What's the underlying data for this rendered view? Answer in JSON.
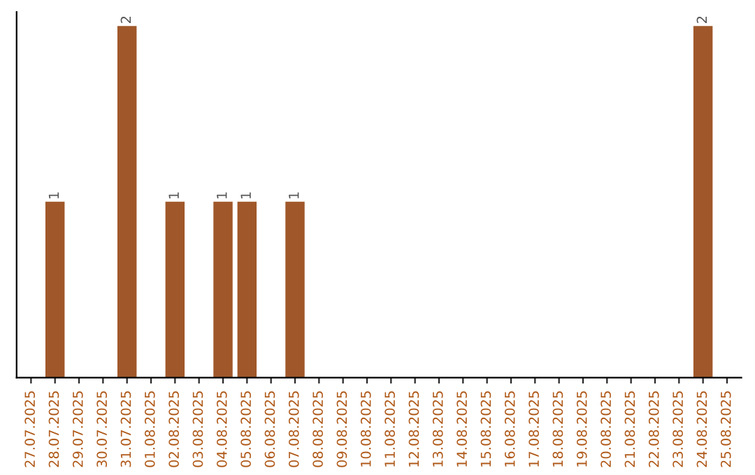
{
  "chart_data": {
    "type": "bar",
    "categories": [
      "27.07.2025",
      "28.07.2025",
      "29.07.2025",
      "30.07.2025",
      "31.07.2025",
      "01.08.2025",
      "02.08.2025",
      "03.08.2025",
      "04.08.2025",
      "05.08.2025",
      "06.08.2025",
      "07.08.2025",
      "08.08.2025",
      "09.08.2025",
      "10.08.2025",
      "11.08.2025",
      "12.08.2025",
      "13.08.2025",
      "14.08.2025",
      "15.08.2025",
      "16.08.2025",
      "17.08.2025",
      "18.08.2025",
      "19.08.2025",
      "20.08.2025",
      "21.08.2025",
      "22.08.2025",
      "23.08.2025",
      "24.08.2025",
      "25.08.2025"
    ],
    "values": [
      null,
      1,
      null,
      null,
      2,
      null,
      1,
      null,
      1,
      1,
      null,
      1,
      null,
      null,
      null,
      null,
      null,
      null,
      null,
      null,
      null,
      null,
      null,
      null,
      null,
      null,
      null,
      null,
      2,
      null
    ],
    "value_labels": [
      null,
      "1",
      null,
      null,
      "2",
      null,
      "1",
      null,
      "1",
      "1",
      null,
      "1",
      null,
      null,
      null,
      null,
      null,
      null,
      null,
      null,
      null,
      null,
      null,
      null,
      null,
      null,
      null,
      null,
      "2",
      null
    ],
    "color": "#a0582a",
    "tick_labels": "x",
    "grid": false,
    "legend": false
  }
}
